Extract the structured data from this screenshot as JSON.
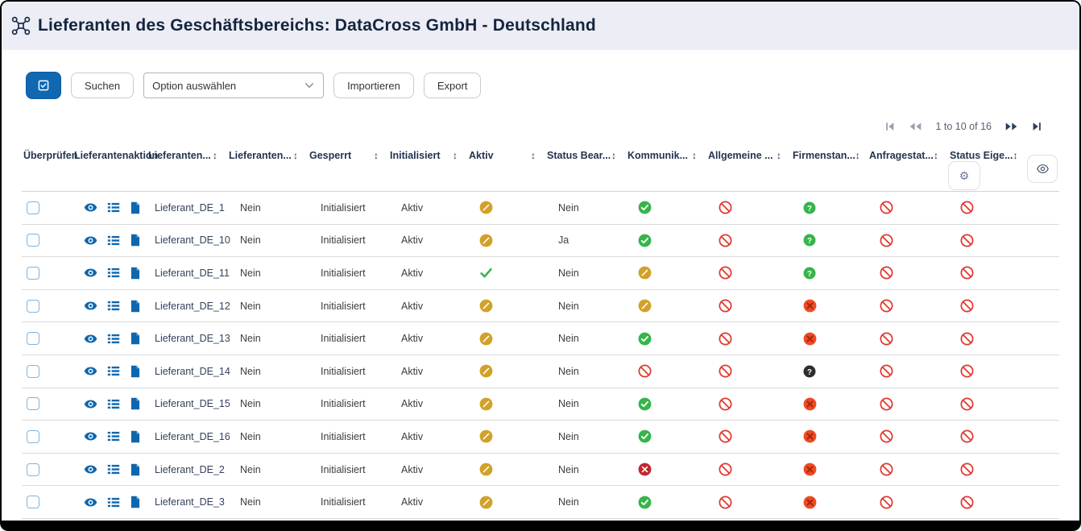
{
  "window": {
    "title": "Lieferanten des Geschäftsbereichs: DataCross GmbH - Deutschland"
  },
  "toolbar": {
    "select_all_icon": "checkbox-checked-icon",
    "search_label": "Suchen",
    "select_value": "Option auswählen",
    "import_label": "Importieren",
    "export_label": "Export"
  },
  "pagination": {
    "label": "1 to 10 of 16",
    "first_icon": "first-page-icon",
    "prev_icon": "previous-page-icon",
    "next_icon": "next-page-icon",
    "last_icon": "last-page-icon"
  },
  "colors": {
    "primary_blue": "#1068b2",
    "action_blue": "#0e67ae",
    "gold": "#d2a129",
    "green": "#35b54a",
    "red_ban": "#e0382d",
    "dark_red": "#c1272d",
    "orange_red": "#f04a23",
    "black_circle": "#2e2e2e",
    "header_bg": "#ecedf5"
  },
  "table": {
    "columns": [
      {
        "label": "Überprüfen",
        "sortable": false
      },
      {
        "label": "Lieferantenaktion",
        "sortable": false
      },
      {
        "label": "Lieferanten...",
        "sortable": true
      },
      {
        "label": "Lieferanten...",
        "sortable": true
      },
      {
        "label": "Gesperrt",
        "sortable": true
      },
      {
        "label": "Initialisiert",
        "sortable": true
      },
      {
        "label": "Aktiv",
        "sortable": true
      },
      {
        "label": "Status Bear...",
        "sortable": true
      },
      {
        "label": "Kommunik...",
        "sortable": true
      },
      {
        "label": "Allgemeine ...",
        "sortable": true
      },
      {
        "label": "Firmenstan...",
        "sortable": true
      },
      {
        "label": "Anfragestat...",
        "sortable": true
      },
      {
        "label": "Status Eige...",
        "sortable": true
      }
    ],
    "row_action_icons": [
      "eye-icon",
      "list-icon",
      "document-icon"
    ],
    "rows": [
      {
        "name": "Lieferant_DE_1",
        "col4": "Nein",
        "col5": "Initialisiert",
        "col6": "Aktiv",
        "aktiv": "pending-gold",
        "status_bear": "Nein",
        "kommunik": "check-green",
        "allgemeine": "ban-red",
        "firmenstan": "question-green",
        "anfragestat": "ban-red",
        "status_eige": "ban-red"
      },
      {
        "name": "Lieferant_DE_10",
        "col4": "Nein",
        "col5": "Initialisiert",
        "col6": "Aktiv",
        "aktiv": "pending-gold",
        "status_bear": "Ja",
        "kommunik": "check-green",
        "allgemeine": "ban-red",
        "firmenstan": "question-green",
        "anfragestat": "ban-red",
        "status_eige": "ban-red"
      },
      {
        "name": "Lieferant_DE_11",
        "col4": "Nein",
        "col5": "Initialisiert",
        "col6": "Aktiv",
        "aktiv": "check-green-plain",
        "status_bear": "Nein",
        "kommunik": "pending-gold",
        "allgemeine": "ban-red",
        "firmenstan": "question-green",
        "anfragestat": "ban-red",
        "status_eige": "ban-red"
      },
      {
        "name": "Lieferant_DE_12",
        "col4": "Nein",
        "col5": "Initialisiert",
        "col6": "Aktiv",
        "aktiv": "pending-gold",
        "status_bear": "Nein",
        "kommunik": "pending-gold",
        "allgemeine": "ban-red",
        "firmenstan": "x-orange",
        "anfragestat": "ban-red",
        "status_eige": "ban-red"
      },
      {
        "name": "Lieferant_DE_13",
        "col4": "Nein",
        "col5": "Initialisiert",
        "col6": "Aktiv",
        "aktiv": "pending-gold",
        "status_bear": "Nein",
        "kommunik": "check-green",
        "allgemeine": "ban-red",
        "firmenstan": "x-orange",
        "anfragestat": "ban-red",
        "status_eige": "ban-red"
      },
      {
        "name": "Lieferant_DE_14",
        "col4": "Nein",
        "col5": "Initialisiert",
        "col6": "Aktiv",
        "aktiv": "pending-gold",
        "status_bear": "Nein",
        "kommunik": "ban-red",
        "allgemeine": "ban-red",
        "firmenstan": "question-black",
        "anfragestat": "ban-red",
        "status_eige": "ban-red"
      },
      {
        "name": "Lieferant_DE_15",
        "col4": "Nein",
        "col5": "Initialisiert",
        "col6": "Aktiv",
        "aktiv": "pending-gold",
        "status_bear": "Nein",
        "kommunik": "check-green",
        "allgemeine": "ban-red",
        "firmenstan": "x-orange",
        "anfragestat": "ban-red",
        "status_eige": "ban-red"
      },
      {
        "name": "Lieferant_DE_16",
        "col4": "Nein",
        "col5": "Initialisiert",
        "col6": "Aktiv",
        "aktiv": "pending-gold",
        "status_bear": "Nein",
        "kommunik": "check-green",
        "allgemeine": "ban-red",
        "firmenstan": "x-orange",
        "anfragestat": "ban-red",
        "status_eige": "ban-red"
      },
      {
        "name": "Lieferant_DE_2",
        "col4": "Nein",
        "col5": "Initialisiert",
        "col6": "Aktiv",
        "aktiv": "pending-gold",
        "status_bear": "Nein",
        "kommunik": "x-darkred",
        "allgemeine": "ban-red",
        "firmenstan": "x-orange",
        "anfragestat": "ban-red",
        "status_eige": "ban-red"
      },
      {
        "name": "Lieferant_DE_3",
        "col4": "Nein",
        "col5": "Initialisiert",
        "col6": "Aktiv",
        "aktiv": "pending-gold",
        "status_bear": "Nein",
        "kommunik": "check-green",
        "allgemeine": "ban-red",
        "firmenstan": "x-orange",
        "anfragestat": "ban-red",
        "status_eige": "ban-red"
      }
    ]
  }
}
